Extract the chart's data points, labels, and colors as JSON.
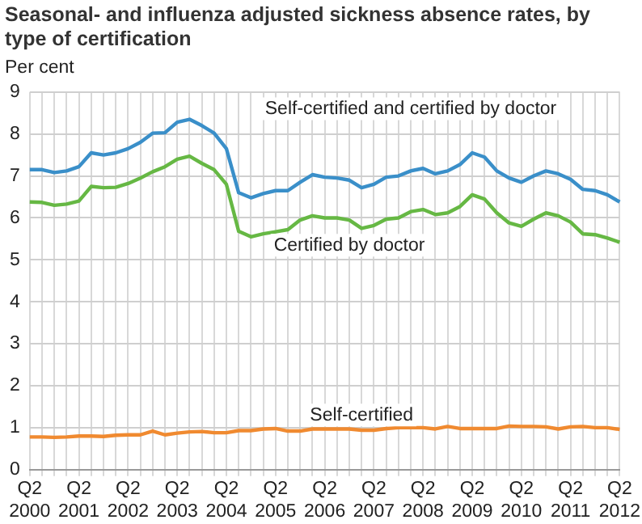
{
  "chart_data": {
    "type": "line",
    "title": "Seasonal- and influenza adjusted sickness absence rates, by type of certification",
    "ylabel": "Per cent",
    "categories": [
      "Q2 2000",
      null,
      null,
      null,
      "Q2 2001",
      null,
      null,
      null,
      "Q2 2002",
      null,
      null,
      null,
      "Q2 2003",
      null,
      null,
      null,
      "Q2 2004",
      null,
      null,
      null,
      "Q2 2005",
      null,
      null,
      null,
      "Q2 2006",
      null,
      null,
      null,
      "Q2 2007",
      null,
      null,
      null,
      "Q2 2008",
      null,
      null,
      null,
      "Q2 2009",
      null,
      null,
      null,
      "Q2 2010",
      null,
      null,
      null,
      "Q2 2011",
      null,
      null,
      null,
      "Q2 2012"
    ],
    "series": [
      {
        "name": "Self-certified and certified by doctor",
        "color": "#3a8fc9",
        "values": [
          7.15,
          7.15,
          7.08,
          7.12,
          7.22,
          7.55,
          7.5,
          7.55,
          7.65,
          7.8,
          8.02,
          8.03,
          8.28,
          8.35,
          8.2,
          8.02,
          7.65,
          6.6,
          6.48,
          6.58,
          6.65,
          6.65,
          6.85,
          7.03,
          6.97,
          6.95,
          6.9,
          6.72,
          6.8,
          6.97,
          7.0,
          7.12,
          7.18,
          7.05,
          7.12,
          7.27,
          7.55,
          7.45,
          7.12,
          6.95,
          6.85,
          7.0,
          7.12,
          7.05,
          6.92,
          6.68,
          6.65,
          6.55,
          6.38
        ]
      },
      {
        "name": "Certified by doctor",
        "color": "#66b844",
        "values": [
          6.38,
          6.37,
          6.3,
          6.33,
          6.4,
          6.75,
          6.72,
          6.73,
          6.82,
          6.95,
          7.1,
          7.22,
          7.4,
          7.47,
          7.3,
          7.15,
          6.8,
          5.68,
          5.55,
          5.62,
          5.67,
          5.72,
          5.95,
          6.05,
          6.0,
          6.0,
          5.95,
          5.75,
          5.82,
          5.97,
          6.0,
          6.15,
          6.2,
          6.08,
          6.12,
          6.27,
          6.55,
          6.45,
          6.12,
          5.88,
          5.8,
          5.97,
          6.12,
          6.05,
          5.9,
          5.62,
          5.6,
          5.52,
          5.42
        ]
      },
      {
        "name": "Self-certified",
        "color": "#f08a30",
        "values": [
          0.78,
          0.78,
          0.77,
          0.78,
          0.8,
          0.8,
          0.79,
          0.82,
          0.83,
          0.83,
          0.92,
          0.83,
          0.87,
          0.9,
          0.91,
          0.88,
          0.88,
          0.93,
          0.93,
          0.97,
          0.98,
          0.92,
          0.92,
          0.97,
          0.97,
          0.97,
          0.97,
          0.94,
          0.94,
          0.98,
          1.0,
          1.0,
          1.0,
          0.97,
          1.03,
          0.98,
          0.98,
          0.98,
          0.98,
          1.04,
          1.03,
          1.03,
          1.02,
          0.97,
          1.02,
          1.03,
          1.0,
          1.0,
          0.96
        ]
      }
    ],
    "ylim": [
      0,
      9
    ],
    "yticks": [
      0,
      1,
      2,
      3,
      4,
      5,
      6,
      7,
      8,
      9
    ],
    "grid": true,
    "legend": false,
    "marker": "none",
    "line_style": "solid"
  }
}
